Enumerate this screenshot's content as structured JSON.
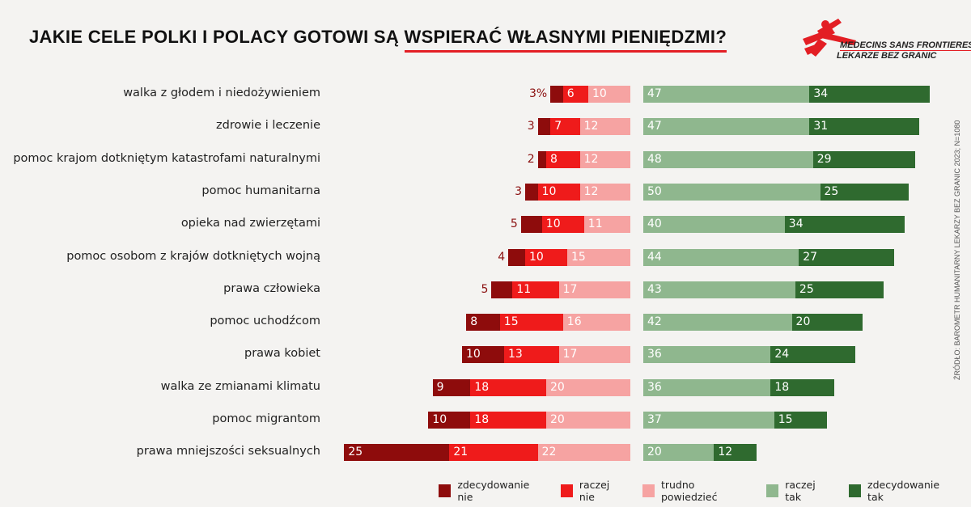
{
  "title": {
    "part1": "JAKIE CELE POLKI I POLACY GOTOWI SĄ ",
    "part2": "WSPIERAĆ WŁASNYMI PIENIĘDZMI?"
  },
  "logo": {
    "line1": "MEDECINS SANS FRONTIERES",
    "line2": "LEKARZE BEZ GRANIC"
  },
  "source": "ŹRÓDŁO: BAROMETR HUMANITARNY LEKARZY BEZ GRANIC 2023; N=1080",
  "colors": {
    "zdecydowanie_nie": "#8e0c0c",
    "raczej_nie": "#ef1b1b",
    "trudno": "#f6a3a2",
    "raczej_tak": "#8fb78e",
    "zdecydowanie_tak": "#2f6a2f"
  },
  "chart_data": {
    "type": "diverging stacked bar",
    "unit": "%",
    "series": [
      {
        "name": "zdecydowanie nie",
        "side": "left"
      },
      {
        "name": "raczej nie",
        "side": "left"
      },
      {
        "name": "trudno powiedzieć",
        "side": "left"
      },
      {
        "name": "raczej tak",
        "side": "right"
      },
      {
        "name": "zdecydowanie tak",
        "side": "right"
      }
    ],
    "legend_position": "bottom-right",
    "rows": [
      {
        "category": "walka z głodem i niedożywieniem",
        "values": [
          3,
          6,
          10,
          47,
          34
        ]
      },
      {
        "category": "zdrowie i leczenie",
        "values": [
          3,
          7,
          12,
          47,
          31
        ]
      },
      {
        "category": "pomoc  krajom dotkniętym katastrofami naturalnymi",
        "values": [
          2,
          8,
          12,
          48,
          29
        ]
      },
      {
        "category": "pomoc humanitarna",
        "values": [
          3,
          10,
          12,
          50,
          25
        ]
      },
      {
        "category": "opieka nad zwierzętami",
        "values": [
          5,
          10,
          11,
          40,
          34
        ]
      },
      {
        "category": "pomoc osobom z krajów dotkniętych wojną",
        "values": [
          4,
          10,
          15,
          44,
          27
        ]
      },
      {
        "category": "prawa człowieka",
        "values": [
          5,
          11,
          17,
          43,
          25
        ]
      },
      {
        "category": "pomoc uchodźcom",
        "values": [
          8,
          15,
          16,
          42,
          20
        ]
      },
      {
        "category": "prawa kobiet",
        "values": [
          10,
          13,
          17,
          36,
          24
        ]
      },
      {
        "category": "walka ze zmianami klimatu",
        "values": [
          9,
          18,
          20,
          36,
          18
        ]
      },
      {
        "category": "pomoc migrantom",
        "values": [
          10,
          18,
          20,
          37,
          15
        ]
      },
      {
        "category": "prawa mniejszości seksualnych",
        "values": [
          25,
          21,
          22,
          20,
          12
        ]
      }
    ]
  }
}
